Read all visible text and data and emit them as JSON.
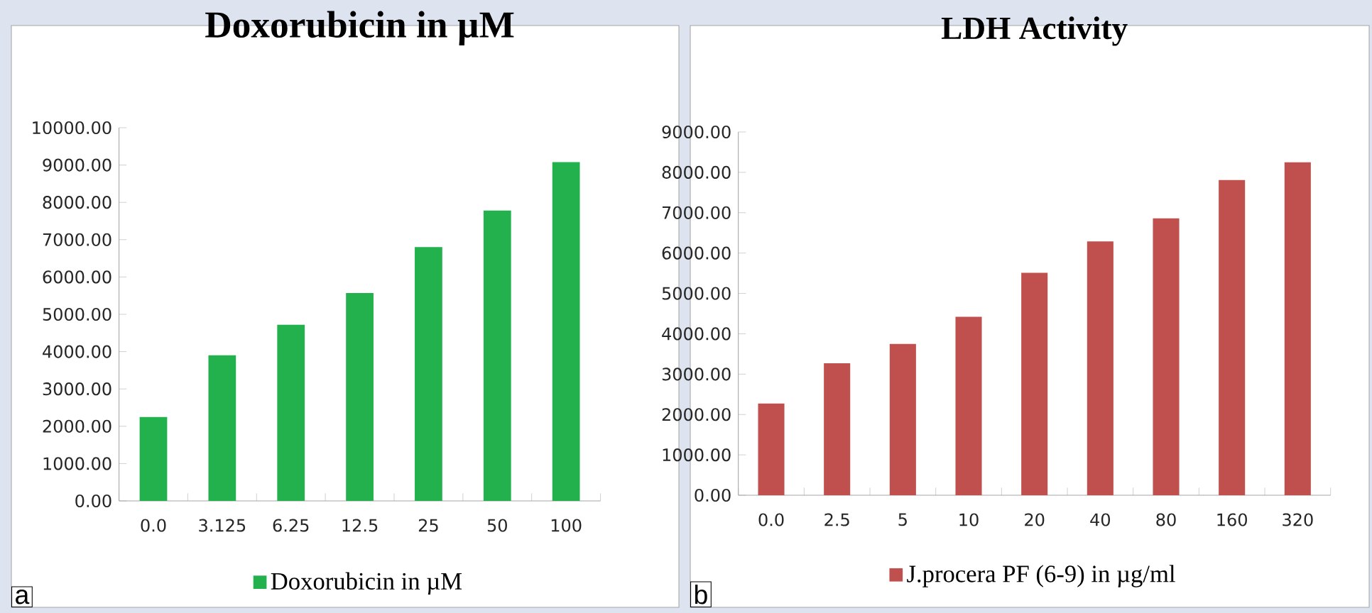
{
  "chart_data": [
    {
      "type": "bar",
      "title": "Doxorubicin in µM",
      "categories": [
        "0.0",
        "3.125",
        "6.25",
        "12.5",
        "25",
        "50",
        "100"
      ],
      "series": [
        {
          "name": "Doxorubicin in µM",
          "color": "#22b14c",
          "values": [
            2250,
            3900,
            4720,
            5570,
            6800,
            7780,
            9080
          ]
        }
      ],
      "ylim": [
        0,
        10000
      ],
      "yticks": [
        {
          "value": 0,
          "label": "0.00"
        },
        {
          "value": 1000,
          "label": "1000.00"
        },
        {
          "value": 2000,
          "label": "2000.00"
        },
        {
          "value": 3000,
          "label": "3000.00"
        },
        {
          "value": 4000,
          "label": "4000.00"
        },
        {
          "value": 5000,
          "label": "5000.00"
        },
        {
          "value": 6000,
          "label": "6000.00"
        },
        {
          "value": 7000,
          "label": "7000.00"
        },
        {
          "value": 8000,
          "label": "8000.00"
        },
        {
          "value": 9000,
          "label": "9000.00"
        },
        {
          "value": 10000,
          "label": "10000.00"
        }
      ],
      "legend": "bottom",
      "annotations": [
        "a"
      ]
    },
    {
      "type": "bar",
      "title": "LDH Activity",
      "categories": [
        "0.0",
        "2.5",
        "5",
        "10",
        "20",
        "40",
        "80",
        "160",
        "320"
      ],
      "series": [
        {
          "name": "J.procera PF (6-9) in µg/ml",
          "color": "#c0504d",
          "values": [
            2270,
            3270,
            3750,
            4420,
            5510,
            6290,
            6860,
            7810,
            8250
          ]
        }
      ],
      "ylim": [
        0,
        9000
      ],
      "yticks": [
        {
          "value": 0,
          "label": "0.00"
        },
        {
          "value": 1000,
          "label": "1000.00"
        },
        {
          "value": 2000,
          "label": "2000.00"
        },
        {
          "value": 3000,
          "label": "3000.00"
        },
        {
          "value": 4000,
          "label": "4000.00"
        },
        {
          "value": 5000,
          "label": "5000.00"
        },
        {
          "value": 6000,
          "label": "6000.00"
        },
        {
          "value": 7000,
          "label": "7000.00"
        },
        {
          "value": 8000,
          "label": "8000.00"
        },
        {
          "value": 9000,
          "label": "9000.00"
        }
      ],
      "legend": "bottom",
      "annotations": [
        "b"
      ]
    }
  ]
}
